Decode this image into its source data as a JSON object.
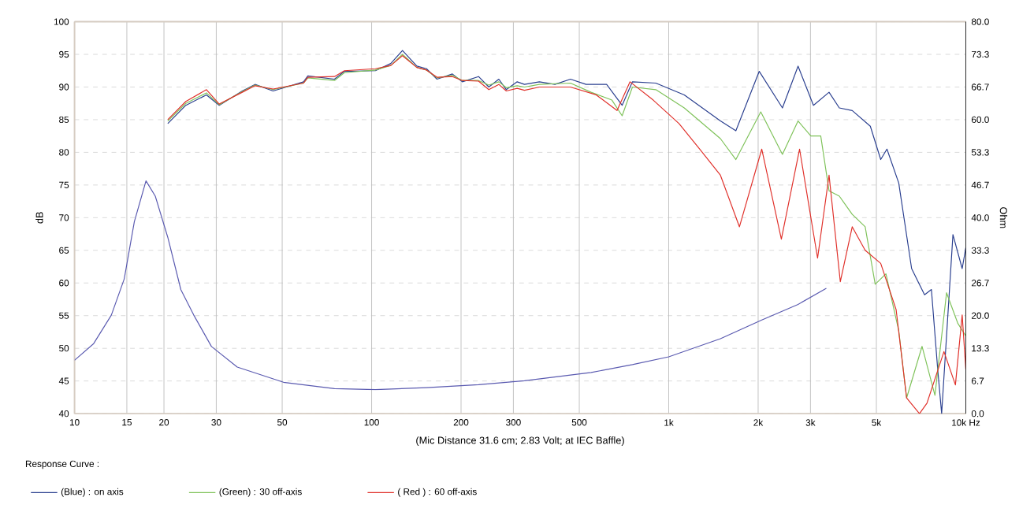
{
  "chart_data": {
    "type": "line",
    "xlabel": "(Mic Distance 31.6 cm; 2.83 Volt; at IEC Baffle)",
    "ylabel": "dB",
    "y2label": "Ohm",
    "legend_title": "Response Curve :",
    "legend": "bottom",
    "log": "x",
    "grid": true,
    "xlim": [
      10,
      10000
    ],
    "xticks": [
      10,
      15,
      20,
      30,
      50,
      100,
      200,
      300,
      500,
      {
        "value": 1000,
        "label": "1k"
      },
      {
        "value": 2000,
        "label": "2k"
      },
      {
        "value": 3000,
        "label": "3k"
      },
      {
        "value": 5000,
        "label": "5k"
      },
      {
        "value": 10000,
        "label": "10k Hz"
      }
    ],
    "ylim": [
      40,
      100
    ],
    "yticks": [
      40,
      45,
      50,
      55,
      60,
      65,
      70,
      75,
      80,
      85,
      90,
      95,
      100
    ],
    "y2lim": [
      0,
      80
    ],
    "y2ticks": [
      {
        "value": 0,
        "label": "0.0"
      },
      {
        "value": 6.667,
        "label": "6.7"
      },
      {
        "value": 13.333,
        "label": "13.3"
      },
      {
        "value": 20,
        "label": "20.0"
      },
      {
        "value": 26.667,
        "label": "26.7"
      },
      {
        "value": 33.333,
        "label": "33.3"
      },
      {
        "value": 40,
        "label": "40.0"
      },
      {
        "value": 46.667,
        "label": "46.7"
      },
      {
        "value": 53.333,
        "label": "53.3"
      },
      {
        "value": 60,
        "label": "60.0"
      },
      {
        "value": 66.667,
        "label": "66.7"
      },
      {
        "value": 73.333,
        "label": "73.3"
      },
      {
        "value": 80,
        "label": "80.0"
      }
    ],
    "series": [
      {
        "name": "(Blue) : on axis",
        "color": "#2a3f8f",
        "x": [
          20.6,
          23.7,
          27.8,
          30.7,
          36.7,
          40.5,
          46.6,
          59,
          61,
          75,
          81,
          103,
          116,
          127,
          142,
          153,
          166,
          187,
          202,
          229,
          248,
          268,
          284,
          309,
          327,
          367,
          414,
          467,
          527,
          618,
          697,
          755,
          905,
          1128,
          1493,
          1683,
          2017,
          2414,
          2725,
          3070,
          3465,
          3752,
          4147,
          4771,
          5171,
          5427,
          5947,
          6571,
          7264,
          7660,
          8032,
          8292,
          9051,
          9722,
          10000
        ],
        "values": [
          84.4,
          87.2,
          88.8,
          87.2,
          89.4,
          90.4,
          89.4,
          90.8,
          91.7,
          91.2,
          92.4,
          92.5,
          93.6,
          95.6,
          93.2,
          92.8,
          91.2,
          92,
          90.8,
          91.6,
          90,
          91.2,
          89.6,
          90.8,
          90.4,
          90.8,
          90.4,
          91.2,
          90.4,
          90.4,
          87.2,
          90.8,
          90.6,
          88.8,
          84.8,
          83.3,
          92.4,
          86.8,
          93.2,
          87.2,
          89.2,
          86.8,
          86.4,
          84,
          78.9,
          80.5,
          75.3,
          62.2,
          58.2,
          59,
          47.1,
          40,
          67.4,
          62.2,
          65.4
        ]
      },
      {
        "name": "(Green) : 30 off-axis",
        "color": "#7fc25a",
        "x": [
          20.6,
          23.7,
          27.8,
          30.7,
          36.7,
          40.5,
          46.6,
          59,
          61,
          75,
          81,
          103,
          116,
          127,
          142,
          153,
          166,
          187,
          202,
          229,
          248,
          268,
          284,
          309,
          327,
          367,
          467,
          548,
          644,
          697,
          755,
          905,
          1128,
          1493,
          1683,
          2041,
          2414,
          2725,
          3010,
          3249,
          3465,
          3752,
          4147,
          4584,
          4955,
          5385,
          5947,
          6320,
          7124,
          7873,
          8614,
          9405,
          10000
        ],
        "values": [
          84.8,
          87.5,
          89.1,
          87.3,
          89.3,
          90.3,
          89.6,
          90.6,
          91.4,
          91,
          92.2,
          92.6,
          93.3,
          95,
          93,
          92.6,
          91.4,
          91.8,
          91,
          91,
          90.3,
          90.8,
          89.9,
          90.2,
          90,
          90.4,
          90.6,
          89.2,
          88,
          85.6,
          90,
          89.6,
          86.8,
          82.1,
          78.9,
          86.2,
          79.7,
          84.8,
          82.5,
          82.5,
          74.1,
          73.3,
          70.5,
          68.6,
          59.8,
          61.4,
          52.7,
          42.4,
          50.3,
          42.8,
          58.5,
          53.8,
          51.9
        ]
      },
      {
        "name": "( Red ) : 60 off-axis",
        "color": "#e0302a",
        "x": [
          20.6,
          23.7,
          27.8,
          30.7,
          36.7,
          40.5,
          46.6,
          59,
          61,
          75,
          81,
          103,
          116,
          127,
          142,
          153,
          166,
          187,
          202,
          229,
          248,
          268,
          284,
          309,
          327,
          367,
          467,
          570,
          670,
          741,
          887,
          1083,
          1272,
          1493,
          1730,
          2057,
          2394,
          2757,
          3170,
          3465,
          3781,
          4147,
          4584,
          5171,
          5828,
          6320,
          6984,
          7400,
          8442,
          9226,
          9722,
          10000
        ],
        "values": [
          85,
          87.8,
          89.6,
          87.4,
          89.2,
          90.2,
          89.7,
          90.6,
          91.5,
          91.6,
          92.5,
          92.8,
          93.3,
          94.8,
          93,
          92.6,
          91.5,
          91.6,
          91,
          90.9,
          89.6,
          90.4,
          89.4,
          89.8,
          89.5,
          90,
          90,
          88.8,
          86.4,
          90.8,
          88,
          84.4,
          80.5,
          76.5,
          68.6,
          80.5,
          66.7,
          80.5,
          63.8,
          76.5,
          60.2,
          68.6,
          65,
          63,
          55.9,
          42.4,
          40,
          41.6,
          49.5,
          44.4,
          55.1,
          46.8
        ]
      },
      {
        "color": "#5a5ab0",
        "axis": "y2",
        "x": [
          10,
          11.6,
          13.3,
          14.7,
          15.9,
          17.4,
          18.7,
          20.6,
          22.8,
          25.2,
          28.9,
          35.3,
          50.5,
          75,
          103,
          153,
          229,
          327,
          548,
          755,
          1000,
          1493,
          2057,
          2725,
          3393
        ],
        "values": [
          10.9,
          14.3,
          20.1,
          27.5,
          39.2,
          47.5,
          44.4,
          36,
          25.3,
          20.1,
          13.7,
          9.5,
          6.4,
          5.1,
          4.9,
          5.3,
          5.9,
          6.7,
          8.4,
          10,
          11.6,
          15.3,
          19.1,
          22.3,
          25.6
        ]
      }
    ]
  }
}
